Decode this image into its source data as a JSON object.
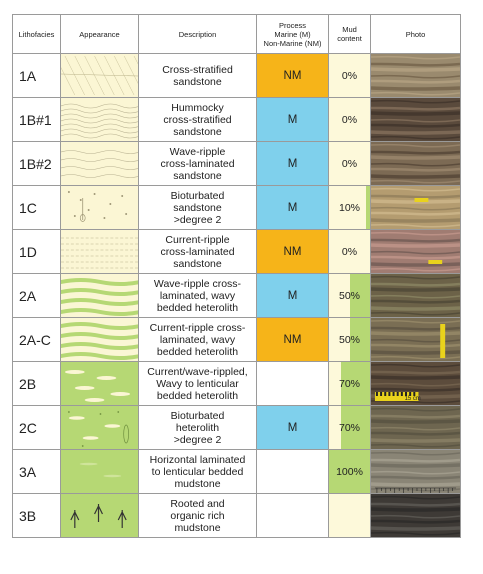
{
  "headers": {
    "lithofacies": "Lithofacies",
    "appearance": "Appearance",
    "description": "Description",
    "process_line1": "Process",
    "process_line2": "Marine (M)",
    "process_line3": "Non-Marine (NM)",
    "mud_line1": "Mud",
    "mud_line2": "content",
    "photo": "Photo"
  },
  "colors": {
    "marine": "#7fd0ec",
    "non_marine": "#f6b419",
    "sand": "#fbf6d4",
    "mud_fill": "#b6d874",
    "mud_bg": "#fdf9da"
  },
  "rows": [
    {
      "code": "1A",
      "description": [
        "Cross-stratified",
        "sandstone"
      ],
      "process": "NM",
      "mud": "0%",
      "mud_fraction": 0.0,
      "scale_label": ""
    },
    {
      "code": "1B#1",
      "description": [
        "Hummocky",
        "cross-stratified",
        "sandstone"
      ],
      "process": "M",
      "mud": "0%",
      "mud_fraction": 0.0,
      "scale_label": ""
    },
    {
      "code": "1B#2",
      "description": [
        "Wave-ripple",
        "cross-laminated",
        "sandstone"
      ],
      "process": "M",
      "mud": "0%",
      "mud_fraction": 0.0,
      "scale_label": ""
    },
    {
      "code": "1C",
      "description": [
        "Bioturbated",
        "sandstone",
        ">degree 2"
      ],
      "process": "M",
      "mud": "10%",
      "mud_fraction": 0.1,
      "scale_label": ""
    },
    {
      "code": "1D",
      "description": [
        "Current-ripple",
        "cross-laminated",
        "sandstone"
      ],
      "process": "NM",
      "mud": "0%",
      "mud_fraction": 0.0,
      "scale_label": ""
    },
    {
      "code": "2A",
      "description": [
        "Wave-ripple cross-",
        "laminated, wavy",
        "bedded heterolith"
      ],
      "process": "M",
      "mud": "50%",
      "mud_fraction": 0.5,
      "scale_label": ""
    },
    {
      "code": "2A-C",
      "description": [
        "Current-ripple cross-",
        "laminated, wavy",
        "bedded heterolith"
      ],
      "process": "NM",
      "mud": "50%",
      "mud_fraction": 0.5,
      "scale_label": ""
    },
    {
      "code": "2B",
      "description": [
        "Current/wave-rippled,",
        "Wavy to lenticular",
        "bedded heterolith"
      ],
      "process": "",
      "mud": "70%",
      "mud_fraction": 0.7,
      "scale_label": "15 cm"
    },
    {
      "code": "2C",
      "description": [
        "Bioturbated",
        "heterolith",
        ">degree 2"
      ],
      "process": "M",
      "mud": "70%",
      "mud_fraction": 0.7,
      "scale_label": ""
    },
    {
      "code": "3A",
      "description": [
        "Horizontal laminated",
        "to lenticular bedded",
        "mudstone"
      ],
      "process": "",
      "mud": "100%",
      "mud_fraction": 1.0,
      "scale_label": ""
    },
    {
      "code": "3B",
      "description": [
        "Rooted and",
        "organic rich",
        "mudstone"
      ],
      "process": "",
      "mud": "",
      "mud_fraction": 0.0,
      "scale_label": ""
    }
  ]
}
